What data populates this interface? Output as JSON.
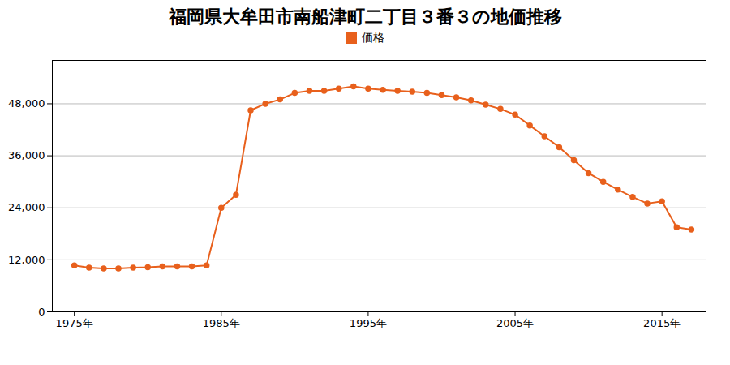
{
  "chart_data": {
    "type": "line",
    "title": "福岡県大牟田市南船津町二丁目３番３の地価推移",
    "x": [
      1975,
      1976,
      1977,
      1978,
      1979,
      1980,
      1981,
      1982,
      1983,
      1984,
      1985,
      1986,
      1987,
      1988,
      1989,
      1990,
      1991,
      1992,
      1993,
      1994,
      1995,
      1996,
      1997,
      1998,
      1999,
      2000,
      2001,
      2002,
      2003,
      2004,
      2005,
      2006,
      2007,
      2008,
      2009,
      2010,
      2011,
      2012,
      2013,
      2014,
      2015,
      2016,
      2017
    ],
    "series": [
      {
        "name": "価格",
        "color": "#E8601C",
        "marker": "circle",
        "values": [
          10700,
          10200,
          10000,
          10000,
          10200,
          10300,
          10500,
          10500,
          10500,
          10700,
          24000,
          27000,
          46500,
          48000,
          49000,
          50500,
          51000,
          51000,
          51500,
          52000,
          51500,
          51200,
          51000,
          50800,
          50500,
          50000,
          49500,
          48800,
          47800,
          46800,
          45500,
          43000,
          40500,
          38000,
          35000,
          32000,
          30000,
          28200,
          26500,
          25000,
          25500,
          19500,
          19000
        ]
      }
    ],
    "xlim": [
      1973.5,
      2018
    ],
    "xticks": [
      {
        "value": 1975,
        "label": "1975年"
      },
      {
        "value": 1985,
        "label": "1985年"
      },
      {
        "value": 1995,
        "label": "1995年"
      },
      {
        "value": 2005,
        "label": "2005年"
      },
      {
        "value": 2015,
        "label": "2015年"
      }
    ],
    "ylim": [
      0,
      58000
    ],
    "yticks": [
      0,
      {
        "value": 12000,
        "label": "12,000"
      },
      {
        "value": 24000,
        "label": "24,000"
      },
      {
        "value": 36000,
        "label": "36,000"
      },
      {
        "value": 48000,
        "label": "48,000"
      }
    ],
    "grid": true,
    "legend": "top"
  }
}
